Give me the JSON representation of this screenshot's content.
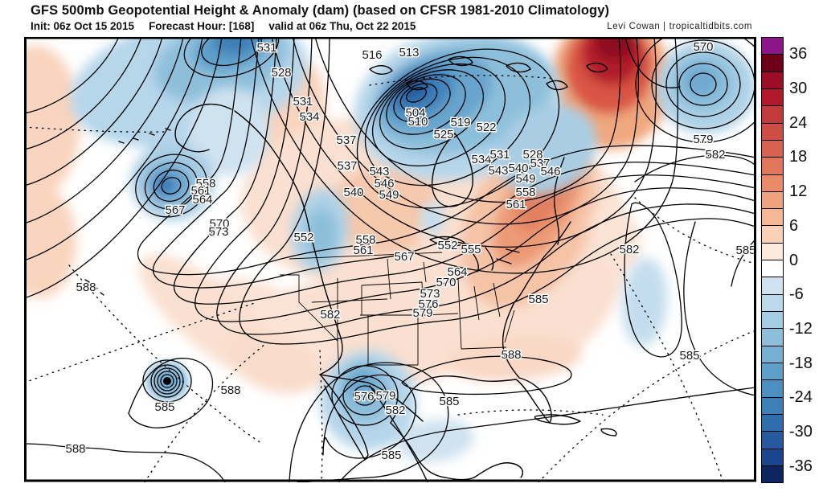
{
  "header": {
    "title": "GFS 500mb Geopotential Height & Anomaly (dam) (based on CFSR 1981-2010 Climatology)",
    "init_label": "Init: 06z Oct 15 2015",
    "forecast_hour_label": "Forecast Hour: [168]",
    "valid_label": "valid at 06z Thu, Oct 22 2015",
    "credit": "Levi Cowan | tropicaltidbits.com"
  },
  "colorbar": {
    "units": "dam",
    "tick_labels": [
      36,
      30,
      24,
      18,
      12,
      6,
      0,
      -6,
      -12,
      -18,
      -24,
      -30,
      -36
    ],
    "segment_colors": [
      "#8b1589",
      "#6d0018",
      "#9c0d26",
      "#b2182b",
      "#c13a3c",
      "#cc4e45",
      "#d6624f",
      "#e0765a",
      "#e98a68",
      "#f0a17e",
      "#f6b797",
      "#fad0b6",
      "#fdeadc",
      "#ffffff",
      "#cfe2f0",
      "#badaeb",
      "#a4cde3",
      "#8dbfdb",
      "#75b0d3",
      "#5fa0ca",
      "#4c90c1",
      "#3d7fb7",
      "#306dac",
      "#27599f",
      "#1c4590",
      "#0d2560"
    ]
  },
  "chart_data": {
    "type": "contour_map",
    "title": "GFS 500mb Geopotential Height & Anomaly (dam) (based on CFSR 1981-2010 Climatology)",
    "model": "GFS",
    "level": "500mb",
    "init": "06z Oct 15 2015",
    "forecast_hour": 168,
    "valid": "06z Thu, Oct 22 2015",
    "variable": "500mb geopotential height (dam, black contours every 3 dam) and height anomaly vs CFSR 1981-2010 climatology (shading, dam)",
    "contour_interval_dam": 3,
    "height_range_dam": [
      504,
      588
    ],
    "anomaly_scale_dam": {
      "min": -36,
      "max": 36,
      "step": 3,
      "legend_position": "right"
    },
    "features": [
      "Deep closed 500mb low near Hudson Bay / central Canada (center < 504 dam, strong negative anomaly)",
      "Closed low in the Gulf of Alaska (~552 dam) with negative anomaly",
      "Bering Sea negative height anomaly at top-left",
      "Strong positive anomaly over Baffin Bay / Greenland (dark red, top right)",
      "Positive anomaly ridge along eastern North America / western Atlantic",
      "Closed low with negative anomaly in the central North Atlantic (top right, ~570 dam)",
      "Cut-off low near Baja California / northwest Mexico (~573-576 dam, negative anomaly)",
      "Intense tropical cyclone in the eastern Pacific (tight concentric contours, black core)",
      "Subtropical ridge 585-588 dam across Mexico, the Gulf and the Atlantic"
    ],
    "labeled_contours": [
      [
        531,
        302,
        13
      ],
      [
        528,
        320,
        44
      ],
      [
        531,
        347,
        80
      ],
      [
        534,
        355,
        99
      ],
      [
        537,
        401,
        128
      ],
      [
        537,
        402,
        160
      ],
      [
        540,
        410,
        193
      ],
      [
        516,
        433,
        22
      ],
      [
        513,
        479,
        19
      ],
      [
        504,
        487,
        94
      ],
      [
        510,
        490,
        105
      ],
      [
        525,
        522,
        121
      ],
      [
        519,
        543,
        106
      ],
      [
        522,
        575,
        112
      ],
      [
        534,
        569,
        152
      ],
      [
        531,
        592,
        146
      ],
      [
        528,
        633,
        146
      ],
      [
        537,
        642,
        157
      ],
      [
        543,
        590,
        166
      ],
      [
        540,
        615,
        163
      ],
      [
        546,
        655,
        167
      ],
      [
        549,
        624,
        176
      ],
      [
        558,
        624,
        193
      ],
      [
        561,
        612,
        208
      ],
      [
        543,
        442,
        167
      ],
      [
        546,
        448,
        182
      ],
      [
        549,
        454,
        196
      ],
      [
        552,
        527,
        259
      ],
      [
        555,
        556,
        264
      ],
      [
        564,
        539,
        292
      ],
      [
        570,
        525,
        305
      ],
      [
        573,
        505,
        319
      ],
      [
        576,
        503,
        332
      ],
      [
        579,
        496,
        343
      ],
      [
        567,
        473,
        273
      ],
      [
        582,
        381,
        345
      ],
      [
        585,
        640,
        326
      ],
      [
        588,
        606,
        395
      ],
      [
        588,
        257,
        439
      ],
      [
        585,
        175,
        460
      ],
      [
        588,
        64,
        512
      ],
      [
        588,
        77,
        311
      ],
      [
        576,
        423,
        447
      ],
      [
        579,
        450,
        446
      ],
      [
        582,
        462,
        464
      ],
      [
        585,
        529,
        453
      ],
      [
        585,
        457,
        520
      ],
      [
        585,
        828,
        396
      ],
      [
        585,
        898,
        265
      ],
      [
        582,
        753,
        264
      ],
      [
        570,
        845,
        10
      ],
      [
        579,
        845,
        127
      ],
      [
        582,
        860,
        146
      ],
      [
        558,
        226,
        182
      ],
      [
        561,
        220,
        191
      ],
      [
        564,
        222,
        202
      ],
      [
        567,
        188,
        215
      ],
      [
        570,
        243,
        232
      ],
      [
        573,
        242,
        242
      ],
      [
        552,
        348,
        249
      ],
      [
        558,
        425,
        252
      ],
      [
        561,
        422,
        265
      ]
    ]
  }
}
